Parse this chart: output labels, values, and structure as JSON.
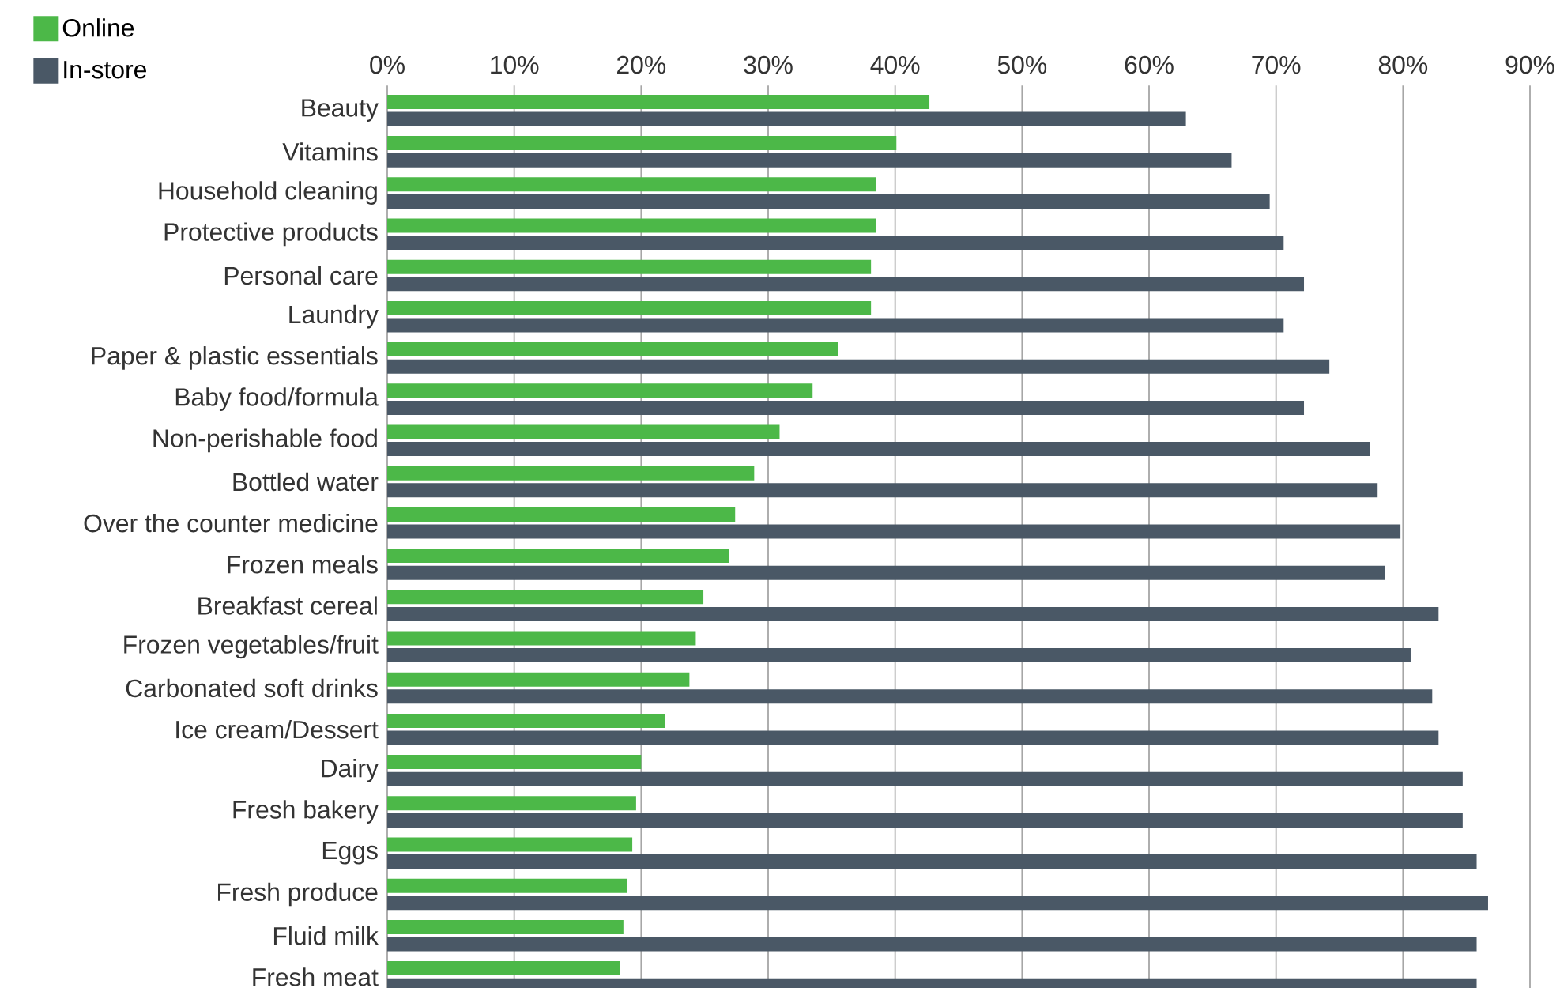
{
  "chart_data": {
    "type": "bar",
    "orientation": "horizontal",
    "categories": [
      "Beauty",
      "Vitamins",
      "Household cleaning",
      "Protective products",
      "Personal care",
      "Laundry",
      "Paper & plastic essentials",
      "Baby food/formula",
      "Non-perishable food",
      "Bottled water",
      "Over the counter medicine",
      "Frozen meals",
      "Breakfast cereal",
      "Frozen vegetables/fruit",
      "Carbonated soft drinks",
      "Ice cream/Dessert",
      "Dairy",
      "Fresh bakery",
      "Eggs",
      "Fresh produce",
      "Fluid milk",
      "Fresh meat"
    ],
    "series": [
      {
        "name": "Online",
        "color": "#4cb848",
        "values": [
          42.7,
          40.1,
          38.5,
          38.5,
          38.1,
          38.1,
          35.5,
          33.5,
          30.9,
          28.9,
          27.4,
          26.9,
          24.9,
          24.3,
          23.8,
          21.9,
          20.0,
          19.6,
          19.3,
          18.9,
          18.6,
          18.3
        ]
      },
      {
        "name": "In-store",
        "color": "#4a5866",
        "values": [
          62.9,
          66.5,
          69.5,
          70.6,
          72.2,
          70.6,
          74.2,
          72.2,
          77.4,
          78.0,
          79.8,
          78.6,
          82.8,
          80.6,
          82.3,
          82.8,
          84.7,
          84.7,
          85.8,
          86.7,
          85.8,
          85.8
        ]
      }
    ],
    "xlim": [
      0,
      90
    ],
    "xticks": [
      {
        "value": 0,
        "label": "0%"
      },
      {
        "value": 10,
        "label": "10%"
      },
      {
        "value": 20,
        "label": "20%"
      },
      {
        "value": 30,
        "label": "30%"
      },
      {
        "value": 40,
        "label": "40%"
      },
      {
        "value": 50,
        "label": "50%"
      },
      {
        "value": 60,
        "label": "60%"
      },
      {
        "value": 70,
        "label": "70%"
      },
      {
        "value": 80,
        "label": "80%"
      },
      {
        "value": 90,
        "label": "90%"
      }
    ],
    "grid": "x",
    "legend": "top left"
  }
}
